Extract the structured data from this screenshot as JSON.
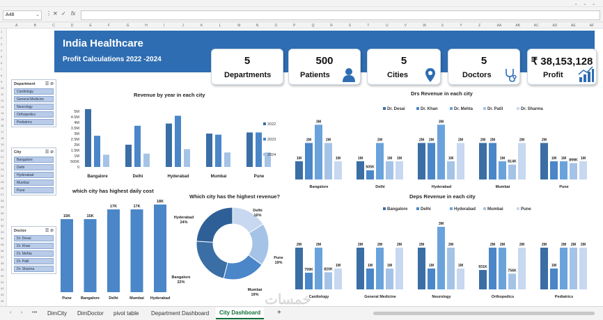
{
  "formula_bar": {
    "name_box": "A48",
    "fx": "fx",
    "formula": ""
  },
  "columns": [
    "A",
    "B",
    "C",
    "D",
    "E",
    "F",
    "G",
    "H",
    "I",
    "J",
    "K",
    "L",
    "M",
    "N",
    "O",
    "P",
    "Q",
    "R",
    "S",
    "T",
    "U",
    "V",
    "W",
    "X",
    "Y",
    "Z",
    "AA",
    "AB",
    "AC",
    "AD",
    "AE",
    "AF"
  ],
  "header": {
    "title": "India Healthcare",
    "subtitle": "Profit Calculations 2022 -2024"
  },
  "kpis": [
    {
      "value": "5",
      "label": "Departments",
      "icon": "none"
    },
    {
      "value": "500",
      "label": "Patients",
      "icon": "person-icon"
    },
    {
      "value": "5",
      "label": "Cities",
      "icon": "location-pin-icon"
    },
    {
      "value": "5",
      "label": "Doctors",
      "icon": "stethoscope-icon"
    },
    {
      "value": "₹ 38,153,128",
      "label": "Profit",
      "icon": "growth-chart-icon"
    }
  ],
  "slicers": {
    "department": {
      "title": "Department",
      "items": [
        "Cardiology",
        "General Medicine",
        "Neurology",
        "Orthopedics",
        "Pediatrics"
      ]
    },
    "city": {
      "title": "City",
      "items": [
        "Bangalore",
        "Delhi",
        "Hyderabad",
        "Mumbai",
        "Pune"
      ]
    },
    "doctor": {
      "title": "Doctor",
      "items": [
        "Dr. Desai",
        "Dr. Khan",
        "Dr. Mehta",
        "Dr. Patil",
        "Dr. Sharma"
      ]
    }
  },
  "colors": {
    "banner": "#2e6db2",
    "s1": "#3a6ea5",
    "s2": "#4a86c8",
    "s3": "#6aa3db",
    "s4": "#a5c3e6",
    "s5": "#c7d8f0"
  },
  "chart_data": [
    {
      "id": "revenue-by-year",
      "type": "bar",
      "title": "Revenue by year in each city",
      "categories": [
        "Bangalore",
        "Delhi",
        "Hyderabad",
        "Mumbai",
        "Pune"
      ],
      "series": [
        {
          "name": "2022",
          "values": [
            5.2,
            2.0,
            3.9,
            3.0,
            3.1
          ]
        },
        {
          "name": "2023",
          "values": [
            2.8,
            3.7,
            4.6,
            2.9,
            3.1
          ]
        },
        {
          "name": "2024",
          "values": [
            1.1,
            1.2,
            1.6,
            1.3,
            1.3
          ]
        }
      ],
      "yticks": [
        "0",
        "500K",
        "1M",
        "1.5M",
        "2M",
        "2.5M",
        "3M",
        "3.5M",
        "4M",
        "4.5M",
        "5M"
      ],
      "ylim": [
        0,
        5.5
      ]
    },
    {
      "id": "daily-cost",
      "type": "bar",
      "title": "which city has highest daily cost",
      "categories": [
        "Pune",
        "Bangalore",
        "Delhi",
        "Mumbai",
        "Hyderabad"
      ],
      "values": [
        15,
        15,
        17,
        17,
        18
      ],
      "data_labels": [
        "15K",
        "15K",
        "17K",
        "17K",
        "18K"
      ],
      "ylim": [
        0,
        18
      ]
    },
    {
      "id": "revenue-share",
      "type": "pie",
      "title": "Which city has the highest revenue?",
      "labels": [
        "Delhi",
        "Pune",
        "Mumbai",
        "Bangalore",
        "Hyderabad"
      ],
      "values": [
        16,
        19,
        19,
        22,
        24
      ],
      "data_labels": [
        "Delhi\n16%",
        "Pune\n19%",
        "Mumbai\n19%",
        "Bangalore\n22%",
        "Hyderabad\n24%"
      ]
    },
    {
      "id": "drs-revenue",
      "type": "bar",
      "title": "Drs Revenue in each city",
      "categories": [
        "Bangalore",
        "Delhi",
        "Hyderabad",
        "Mumbai",
        "Pune"
      ],
      "series": [
        {
          "name": "Dr. Desai",
          "values": [
            1.0,
            1.0,
            2.0,
            2.0,
            2.0
          ],
          "labels": [
            "1M",
            "1M",
            "2M",
            "2M",
            "2M"
          ]
        },
        {
          "name": "Dr. Khan",
          "values": [
            2.0,
            0.505,
            2.0,
            2.0,
            1.0
          ],
          "labels": [
            "2M",
            "505K",
            "2M",
            "2M",
            "1M"
          ]
        },
        {
          "name": "Dr. Mehta",
          "values": [
            3.0,
            2.0,
            3.0,
            1.0,
            1.0
          ],
          "labels": [
            "3M",
            "2M",
            "3M",
            "1M",
            "1M"
          ]
        },
        {
          "name": "Dr. Patil",
          "values": [
            2.0,
            1.0,
            1.0,
            0.814,
            0.899
          ],
          "labels": [
            "2M",
            "1M",
            "1M",
            "814K",
            "899K"
          ]
        },
        {
          "name": "Dr. Sharma",
          "values": [
            1.0,
            1.0,
            2.0,
            2.0,
            1.0
          ],
          "labels": [
            "1M",
            "1M",
            "2M",
            "2M",
            "1M"
          ]
        }
      ],
      "ylim": [
        0,
        3.2
      ]
    },
    {
      "id": "deps-revenue",
      "type": "bar",
      "title": "Deps Revenue in each city",
      "categories": [
        "Cardiology",
        "General Medicine",
        "Neurology",
        "Orthopedics",
        "Pediatrics"
      ],
      "series": [
        {
          "name": "Bangalore",
          "values": [
            2.0,
            2.0,
            2.0,
            0.931,
            2.0
          ],
          "labels": [
            "2M",
            "2M",
            "2M",
            "931K",
            "2M"
          ]
        },
        {
          "name": "Delhi",
          "values": [
            0.799,
            1.0,
            1.0,
            2.0,
            1.0
          ],
          "labels": [
            "799K",
            "1M",
            "1M",
            "2M",
            "1M"
          ]
        },
        {
          "name": "Hyderabad",
          "values": [
            2.0,
            2.0,
            3.0,
            2.0,
            2.0
          ],
          "labels": [
            "2M",
            "2M",
            "3M",
            "2M",
            "2M"
          ]
        },
        {
          "name": "Mumbai",
          "values": [
            0.82,
            1.0,
            2.0,
            0.756,
            2.0
          ],
          "labels": [
            "820K",
            "1M",
            "2M",
            "756K",
            "2M"
          ]
        },
        {
          "name": "Pune",
          "values": [
            1.0,
            2.0,
            1.0,
            2.0,
            2.0
          ],
          "labels": [
            "1M",
            "2M",
            "1M",
            "2M",
            "2M"
          ]
        }
      ],
      "ylim": [
        0,
        3.2
      ]
    }
  ],
  "sheet_tabs": [
    "DimCity",
    "DimDoctor",
    "pivot table",
    "Department Dashboard",
    "City Dashboard"
  ],
  "active_tab": "City Dashboard",
  "tab_controls": {
    "prev": "‹",
    "next": "›",
    "more": "•••",
    "add": "+"
  }
}
